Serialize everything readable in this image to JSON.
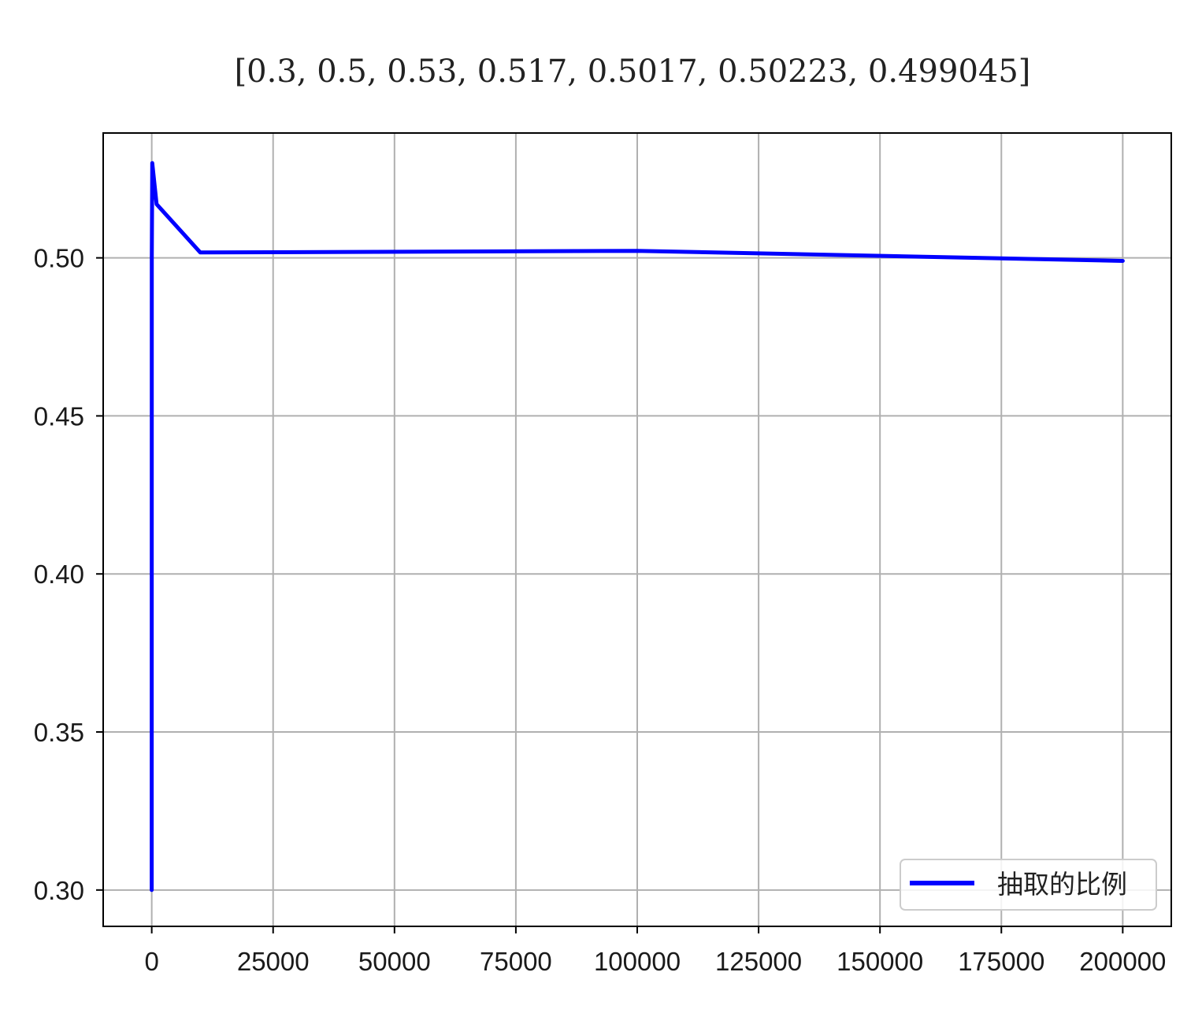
{
  "chart_data": {
    "type": "line",
    "title": "[0.3, 0.5, 0.53, 0.517, 0.5017, 0.50223, 0.499045]",
    "xlabel": "",
    "ylabel": "",
    "x": [
      10,
      100,
      1000,
      10000,
      100000,
      200000
    ],
    "series": [
      {
        "name": "抽取的比例",
        "color": "#0000ff",
        "x": [
          0,
          10,
          100,
          1000,
          10000,
          100000,
          200000
        ],
        "values": [
          0.3,
          0.5,
          0.53,
          0.517,
          0.5017,
          0.50223,
          0.499045
        ]
      }
    ],
    "xlim": [
      -10000,
      210000
    ],
    "ylim": [
      0.2885,
      0.5395
    ],
    "xticks": [
      0,
      25000,
      50000,
      75000,
      100000,
      125000,
      150000,
      175000,
      200000
    ],
    "xtick_labels": [
      "0",
      "25000",
      "50000",
      "75000",
      "100000",
      "125000",
      "150000",
      "175000",
      "200000"
    ],
    "yticks": [
      0.3,
      0.35,
      0.4,
      0.45,
      0.5
    ],
    "ytick_labels": [
      "0.30",
      "0.35",
      "0.40",
      "0.45",
      "0.50"
    ],
    "grid": true,
    "legend_position": "lower right"
  }
}
